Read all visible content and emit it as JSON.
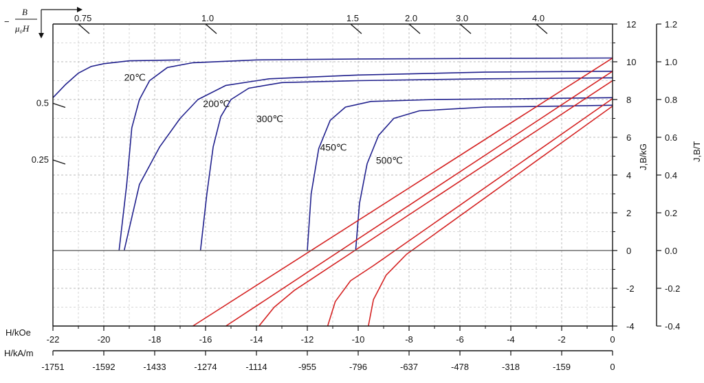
{
  "chart_data": {
    "type": "line",
    "title": "",
    "corner_label": {
      "minus": "−",
      "numerator": "B",
      "denominator": "μ₀H"
    },
    "x_axis_koe": {
      "label": "H/kOe",
      "range": [
        -22,
        0
      ],
      "ticks": [
        "-22",
        "-20",
        "-18",
        "-16",
        "-14",
        "-12",
        "-10",
        "-8",
        "-6",
        "-4",
        "-2",
        "0"
      ],
      "tick_values": [
        -22,
        -20,
        -18,
        -16,
        -14,
        -12,
        -10,
        -8,
        -6,
        -4,
        -2,
        0
      ]
    },
    "x_axis_kam": {
      "label": "H/kA/m",
      "ticks": [
        "-1751",
        "-1592",
        "-1433",
        "-1274",
        "-1114",
        "-955",
        "-796",
        "-637",
        "-478",
        "-318",
        "-159",
        "0"
      ]
    },
    "y_axis_kg": {
      "label": "J,B/kG",
      "range": [
        -4,
        12
      ],
      "ticks": [
        "-4",
        "-2",
        "0",
        "2",
        "4",
        "6",
        "8",
        "10",
        "12"
      ],
      "tick_values": [
        -4,
        -2,
        0,
        2,
        4,
        6,
        8,
        10,
        12
      ]
    },
    "y_axis_t": {
      "label": "J,B/T",
      "ticks": [
        "-0.4",
        "-0.2",
        "0.0",
        "0.2",
        "0.4",
        "0.6",
        "0.8",
        "1.0",
        "1.2"
      ]
    },
    "load_lines": [
      {
        "label": "0.75",
        "x": -21,
        "y": 12
      },
      {
        "label": "1.0",
        "x": -16,
        "y": 12
      },
      {
        "label": "1.5",
        "x": -10.3,
        "y": 12
      },
      {
        "label": "2.0",
        "x": -8,
        "y": 12
      },
      {
        "label": "3.0",
        "x": -6,
        "y": 12
      },
      {
        "label": "4.0",
        "x": -3,
        "y": 12
      },
      {
        "label": "0.5",
        "x": -22,
        "y": 7.8
      },
      {
        "label": "0.25",
        "x": -22,
        "y": 4.8
      }
    ],
    "series": [
      {
        "name": "20℃",
        "color": "#1f1f8c",
        "label_at": [
          -19.2,
          9.0
        ],
        "points": [
          [
            -19.4,
            0
          ],
          [
            -19.1,
            3.5
          ],
          [
            -18.9,
            6.5
          ],
          [
            -18.6,
            8.0
          ],
          [
            -18.2,
            9.0
          ],
          [
            -17.5,
            9.7
          ],
          [
            -16.5,
            9.95
          ],
          [
            -14,
            10.1
          ],
          [
            -10,
            10.15
          ],
          [
            -5,
            10.18
          ],
          [
            0,
            10.2
          ]
        ],
        "extra_points": [
          [
            -22,
            8.1
          ],
          [
            -21.5,
            8.8
          ],
          [
            -21,
            9.4
          ],
          [
            -20.5,
            9.75
          ],
          [
            -20,
            9.9
          ],
          [
            -19,
            10.05
          ],
          [
            -17,
            10.1
          ]
        ]
      },
      {
        "name": "200℃",
        "color": "#1f1f8c",
        "label_at": [
          -16.1,
          7.6
        ],
        "points": [
          [
            -16.2,
            0
          ],
          [
            -15.95,
            3.0
          ],
          [
            -15.7,
            5.5
          ],
          [
            -15.4,
            7.1
          ],
          [
            -15.0,
            8.0
          ],
          [
            -14.3,
            8.6
          ],
          [
            -13,
            8.9
          ],
          [
            -10,
            9.0
          ],
          [
            -5,
            9.1
          ],
          [
            0,
            9.15
          ]
        ]
      },
      {
        "name": "300℃",
        "color": "#1f1f8c",
        "label_at": [
          -14.0,
          6.8
        ],
        "points": [
          [
            -19.2,
            0
          ],
          [
            -18.6,
            3.5
          ],
          [
            -17.8,
            5.5
          ],
          [
            -17.0,
            7.0
          ],
          [
            -16.3,
            8.0
          ],
          [
            -15.2,
            8.75
          ],
          [
            -13.5,
            9.1
          ],
          [
            -10,
            9.3
          ],
          [
            -5,
            9.45
          ],
          [
            0,
            9.5
          ]
        ],
        "slot": "second"
      },
      {
        "name": "450℃",
        "color": "#1f1f8c",
        "label_at": [
          -11.5,
          5.3
        ],
        "points": [
          [
            -12.0,
            0
          ],
          [
            -11.85,
            3.0
          ],
          [
            -11.55,
            5.4
          ],
          [
            -11.1,
            6.9
          ],
          [
            -10.5,
            7.6
          ],
          [
            -9.5,
            7.9
          ],
          [
            -7,
            8.0
          ],
          [
            -3,
            8.05
          ],
          [
            0,
            8.1
          ]
        ]
      },
      {
        "name": "500℃",
        "color": "#1f1f8c",
        "label_at": [
          -9.3,
          4.6
        ],
        "points": [
          [
            -10.1,
            0
          ],
          [
            -9.95,
            2.5
          ],
          [
            -9.65,
            4.6
          ],
          [
            -9.2,
            6.1
          ],
          [
            -8.6,
            7.0
          ],
          [
            -7.6,
            7.4
          ],
          [
            -5,
            7.6
          ],
          [
            -2,
            7.65
          ],
          [
            0,
            7.7
          ]
        ]
      },
      {
        "name": "B-20℃",
        "color": "#d42020",
        "points": [
          [
            -16.5,
            -4
          ],
          [
            0,
            10.2
          ]
        ]
      },
      {
        "name": "B-200℃",
        "color": "#d42020",
        "points": [
          [
            -15.2,
            -4
          ],
          [
            0,
            9.5
          ]
        ]
      },
      {
        "name": "B-300℃",
        "color": "#d42020",
        "points": [
          [
            -13.9,
            -4
          ],
          [
            -13.3,
            -3.0
          ],
          [
            -12.5,
            -2.1
          ],
          [
            0,
            9.0
          ]
        ]
      },
      {
        "name": "B-450℃",
        "color": "#d42020",
        "points": [
          [
            -11.2,
            -4
          ],
          [
            -10.9,
            -2.7
          ],
          [
            -10.3,
            -1.6
          ],
          [
            -9.4,
            -0.8
          ],
          [
            0,
            8.05
          ]
        ]
      },
      {
        "name": "B-500℃",
        "color": "#d42020",
        "points": [
          [
            -9.6,
            -4
          ],
          [
            -9.4,
            -2.6
          ],
          [
            -8.9,
            -1.3
          ],
          [
            -8.1,
            -0.2
          ],
          [
            0,
            7.65
          ]
        ]
      }
    ]
  }
}
